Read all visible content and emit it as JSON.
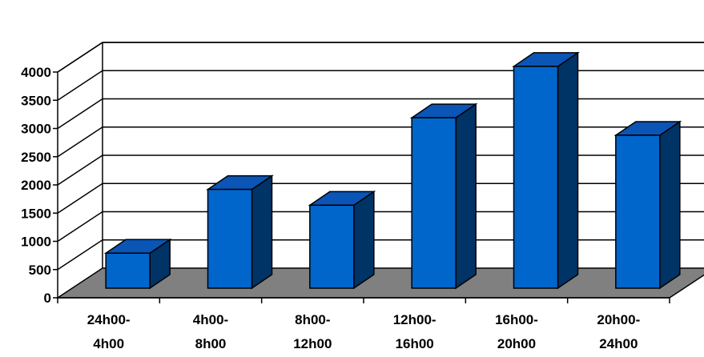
{
  "chart_data": {
    "type": "bar",
    "title": "",
    "xlabel": "",
    "ylabel": "",
    "categories": [
      [
        "24h00-",
        "4h00"
      ],
      [
        "4h00-",
        "8h00"
      ],
      [
        "8h00-",
        "12h00"
      ],
      [
        "12h00-",
        "16h00"
      ],
      [
        "16h00-",
        "20h00"
      ],
      [
        "20h00-",
        "24h00"
      ]
    ],
    "values": [
      620,
      1750,
      1470,
      3020,
      3930,
      2710
    ],
    "ylim": [
      0,
      4000
    ],
    "yticks": [
      0,
      500,
      1000,
      1500,
      2000,
      2500,
      3000,
      3500,
      4000
    ],
    "grid": true,
    "legend": "none",
    "three_d": true,
    "colors": {
      "bar_front": "#0066cc",
      "bar_top": "#0a55b5",
      "bar_side": "#003366",
      "floor": "#808080",
      "axis": "#000000"
    }
  }
}
